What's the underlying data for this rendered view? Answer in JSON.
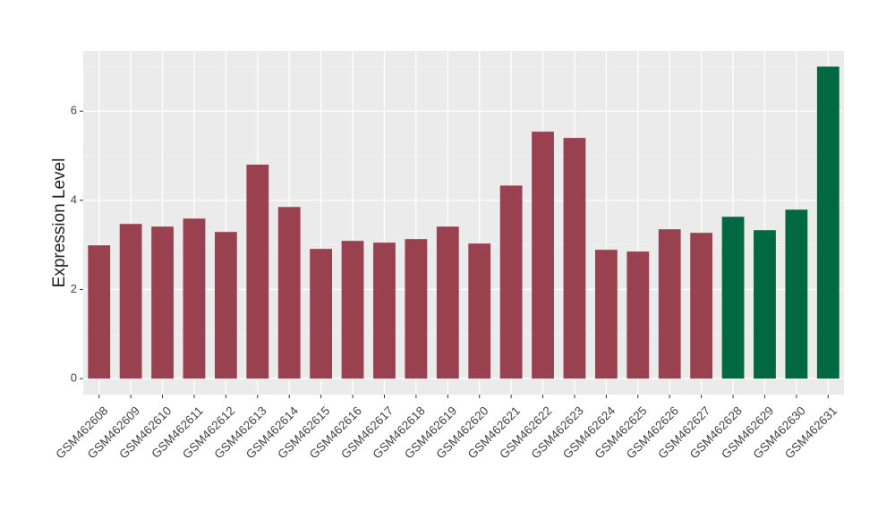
{
  "chart_data": {
    "type": "bar",
    "ylabel": "Expression Level",
    "categories": [
      "GSM462608",
      "GSM462609",
      "GSM462610",
      "GSM462611",
      "GSM462612",
      "GSM462613",
      "GSM462614",
      "GSM462615",
      "GSM462616",
      "GSM462617",
      "GSM462618",
      "GSM462619",
      "GSM462620",
      "GSM462621",
      "GSM462622",
      "GSM462623",
      "GSM462624",
      "GSM462625",
      "GSM462626",
      "GSM462627",
      "GSM462628",
      "GSM462629",
      "GSM462630",
      "GSM462631"
    ],
    "values": [
      2.99,
      3.47,
      3.41,
      3.59,
      3.29,
      4.8,
      3.85,
      2.91,
      3.09,
      3.05,
      3.13,
      3.41,
      3.03,
      4.33,
      5.54,
      5.4,
      2.89,
      2.85,
      3.35,
      3.27,
      3.63,
      3.33,
      3.79,
      7.0
    ],
    "colors": [
      "#9a4150",
      "#9a4150",
      "#9a4150",
      "#9a4150",
      "#9a4150",
      "#9a4150",
      "#9a4150",
      "#9a4150",
      "#9a4150",
      "#9a4150",
      "#9a4150",
      "#9a4150",
      "#9a4150",
      "#9a4150",
      "#9a4150",
      "#9a4150",
      "#9a4150",
      "#9a4150",
      "#9a4150",
      "#9a4150",
      "#006944",
      "#006944",
      "#006944",
      "#006944"
    ],
    "ylim": [
      -0.36,
      7.35
    ],
    "yticks": [
      0,
      2,
      4,
      6
    ],
    "minor_yticks": [
      1,
      3,
      5,
      7
    ],
    "grid": true
  }
}
